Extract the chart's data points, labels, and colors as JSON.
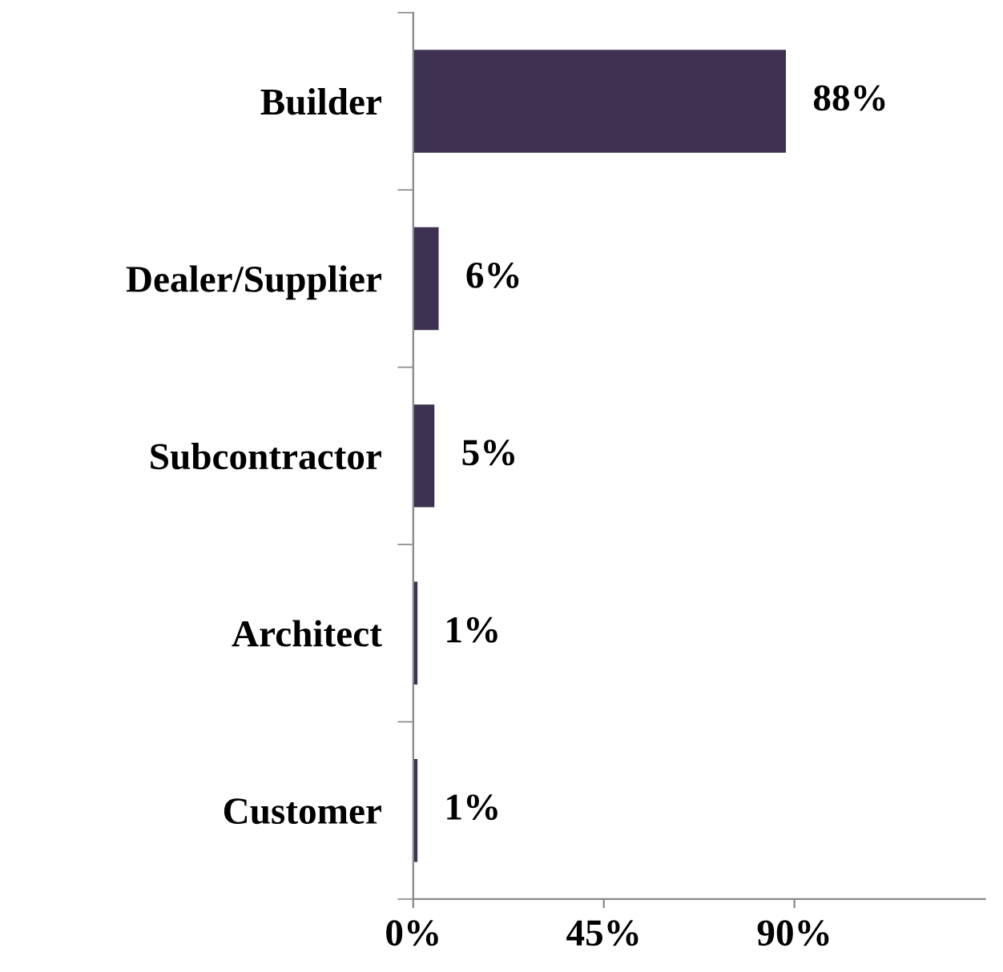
{
  "chart_data": {
    "type": "bar",
    "orientation": "horizontal",
    "categories": [
      "Builder",
      "Dealer/Supplier",
      "Subcontractor",
      "Architect",
      "Customer"
    ],
    "values": [
      88,
      6,
      5,
      1,
      1
    ],
    "value_labels": [
      "88%",
      "6%",
      "5%",
      "1%",
      "1%"
    ],
    "color": "#3f3151",
    "xlim": [
      0,
      135
    ],
    "xticks": [
      {
        "value": 0,
        "label": "0%"
      },
      {
        "value": 45,
        "label": "45%"
      },
      {
        "value": 90,
        "label": "90%"
      }
    ],
    "grid": false,
    "legend": false
  }
}
